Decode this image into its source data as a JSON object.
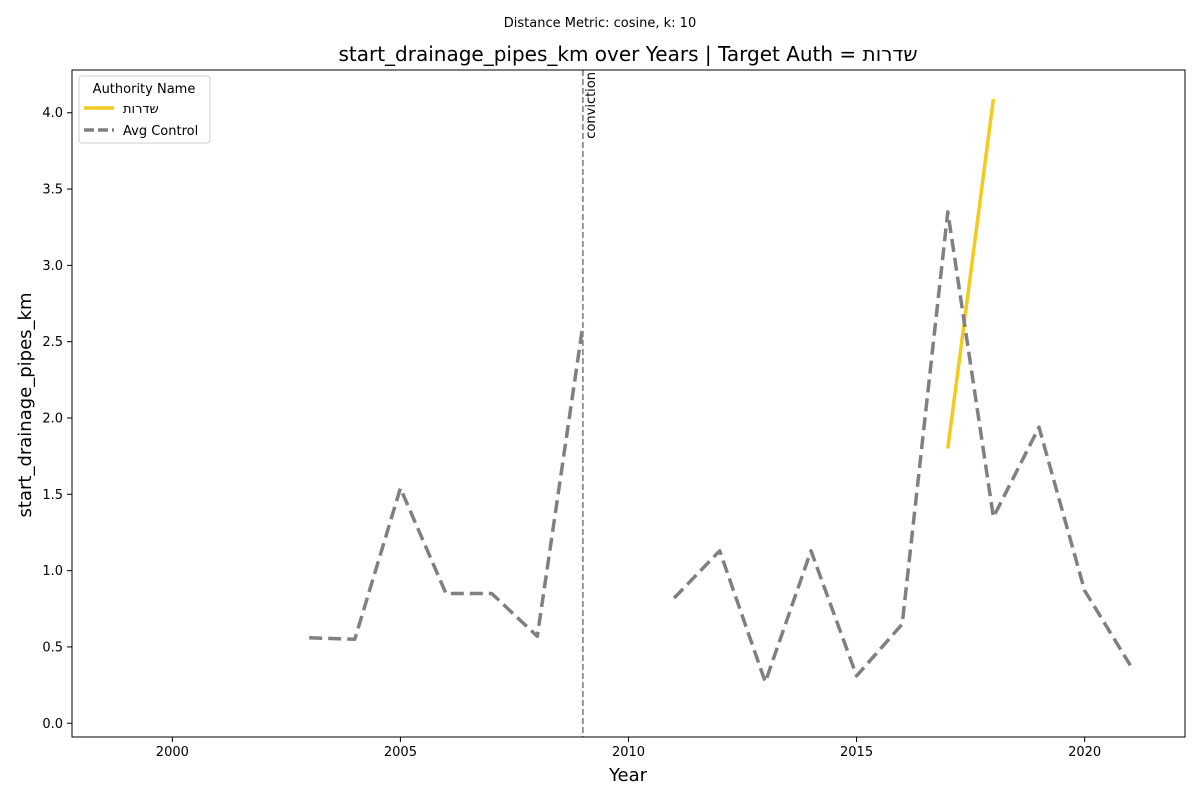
{
  "chart_data": {
    "type": "line",
    "suptitle": "Distance Metric: cosine, k: 10",
    "title": "start_drainage_pipes_km over Years | Target Auth = שדרות",
    "xlabel": "Year",
    "ylabel": "start_drainage_pipes_km",
    "xlim": [
      1997.8,
      2022.2
    ],
    "ylim": [
      -0.09,
      4.28
    ],
    "xticks": [
      2000,
      2005,
      2010,
      2015,
      2020
    ],
    "yticks": [
      0.0,
      0.5,
      1.0,
      1.5,
      2.0,
      2.5,
      3.0,
      3.5,
      4.0
    ],
    "legend": {
      "title": "Authority Name",
      "position": "top-left"
    },
    "series": [
      {
        "name": "שדרות",
        "color": "#f2cb1d",
        "style": "solid",
        "x": [
          2017,
          2018
        ],
        "y": [
          1.8,
          4.09
        ]
      },
      {
        "name": "Avg Control",
        "color": "#808080",
        "style": "dashed",
        "x": [
          2003,
          2004,
          2005,
          2006,
          2007,
          2008,
          2009,
          2010,
          2011,
          2012,
          2013,
          2014,
          2015,
          2016,
          2017,
          2018,
          2019,
          2020,
          2021
        ],
        "y": [
          0.56,
          0.55,
          1.54,
          0.85,
          0.85,
          0.57,
          2.61,
          null,
          0.82,
          1.13,
          0.27,
          1.13,
          0.31,
          0.65,
          3.35,
          1.35,
          1.94,
          0.87,
          0.38
        ]
      }
    ],
    "annotations": [
      {
        "type": "vline",
        "x": 2009,
        "label": "conviction",
        "color": "#808080",
        "style": "dashed"
      }
    ]
  }
}
